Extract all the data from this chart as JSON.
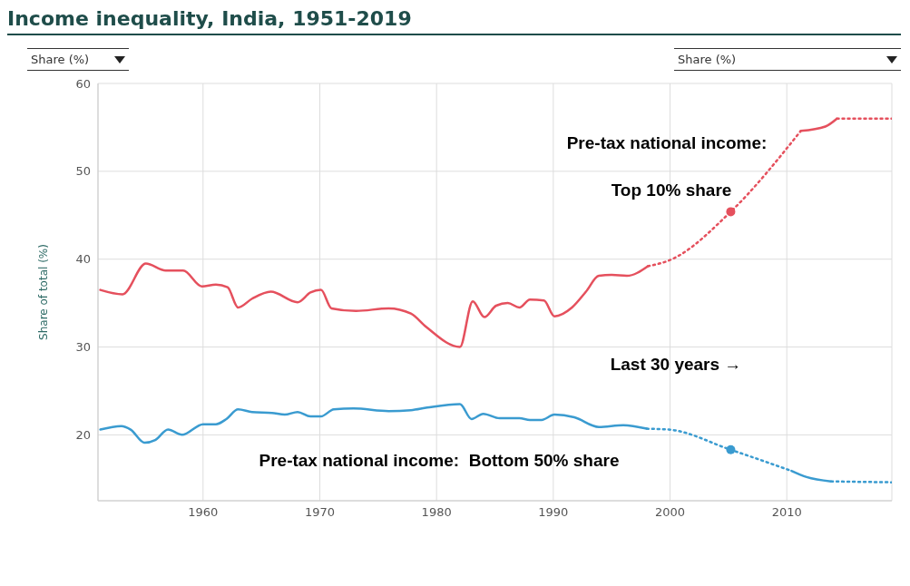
{
  "chart_data": {
    "type": "line",
    "title": "Income inequality, India, 1951-2019",
    "ylabel": "Share of total (%)",
    "annotations": [
      "Share (%)",
      "Share (%)",
      "Pre-tax national income:",
      "Top 10% share",
      "Last 30 years →",
      "Pre-tax national income:  Bottom 50% share"
    ],
    "xlim": [
      1951,
      2019
    ],
    "xticks": [
      1960,
      1970,
      1980,
      1990,
      2000,
      2010
    ],
    "ylim": [
      12.5,
      60
    ],
    "yticks": [
      20,
      30,
      40,
      50,
      60
    ],
    "grid": true,
    "series": [
      {
        "color": "#e5505d",
        "line_style": "solid",
        "x": [
          1951.2,
          1953.1,
          1955.1,
          1956.8,
          1958.3,
          1959.9,
          1961.1,
          1962.1,
          1963.0,
          1964.2,
          1965.8,
          1968.1,
          1969.2,
          1970.1,
          1971.0,
          1973.1,
          1975.9,
          1977.8,
          1979.1,
          1982.0,
          1983.1,
          1984.1,
          1985.1,
          1986.1,
          1987.1,
          1988.0,
          1989.2,
          1990.1,
          1991.6,
          1992.8,
          1993.9,
          1995.0,
          1996.3,
          1998.1
        ],
        "values": [
          36.5,
          36.0,
          39.5,
          38.7,
          38.7,
          36.9,
          37.1,
          36.8,
          34.5,
          35.5,
          36.3,
          35.1,
          36.2,
          36.5,
          34.4,
          34.1,
          34.4,
          33.8,
          32.3,
          30.0,
          35.2,
          33.4,
          34.7,
          35.0,
          34.5,
          35.4,
          35.3,
          33.5,
          34.5,
          36.3,
          38.1,
          38.2,
          38.1,
          39.2
        ]
      },
      {
        "color": "#e5505d",
        "line_style": "dotted",
        "x": [
          1998.1,
          2000,
          2005.2,
          2011.2
        ],
        "values": [
          39.2,
          39.9,
          45.4,
          54.6
        ]
      },
      {
        "color": "#e5505d",
        "line_style": "solid",
        "x": [
          2011.2,
          2013.3,
          2014.3
        ],
        "values": [
          54.6,
          55.1,
          56.0
        ]
      },
      {
        "color": "#e5505d",
        "line_style": "dotted",
        "x": [
          2014.3,
          2019
        ],
        "values": [
          56.0,
          56.0
        ]
      },
      {
        "color": "#e5505d",
        "type": "scatter",
        "marker": "circle",
        "x": [
          2005.2
        ],
        "values": [
          45.4
        ]
      },
      {
        "color": "#3a9bd0",
        "line_style": "solid",
        "x": [
          1951.2,
          1953.0,
          1953.8,
          1955.0,
          1955.9,
          1957.0,
          1958.2,
          1960.0,
          1961.1,
          1962.0,
          1963.0,
          1964.2,
          1965.9,
          1967.0,
          1968.1,
          1969.2,
          1970.1,
          1971.2,
          1972.9,
          1975.9,
          1977.8,
          1979.2,
          1982.0,
          1983.0,
          1984.0,
          1985.4,
          1987.1,
          1988.0,
          1989.0,
          1990.1,
          1991.8,
          1993.9,
          1996.0,
          1998.0
        ],
        "values": [
          20.6,
          21.0,
          20.6,
          19.1,
          19.4,
          20.6,
          20.0,
          21.2,
          21.2,
          21.8,
          22.9,
          22.6,
          22.5,
          22.3,
          22.6,
          22.1,
          22.1,
          22.9,
          23.0,
          22.7,
          22.8,
          23.1,
          23.5,
          21.8,
          22.4,
          21.9,
          21.9,
          21.7,
          21.7,
          22.3,
          22.0,
          20.9,
          21.1,
          20.7
        ]
      },
      {
        "color": "#3a9bd0",
        "line_style": "dotted",
        "x": [
          1998.0,
          1999.9,
          2005.2,
          2010.4
        ],
        "values": [
          20.7,
          20.6,
          18.3,
          15.9
        ]
      },
      {
        "color": "#3a9bd0",
        "line_style": "solid",
        "x": [
          2010.4,
          2011.7,
          2013.8
        ],
        "values": [
          15.9,
          15.2,
          14.7
        ]
      },
      {
        "color": "#3a9bd0",
        "line_style": "dotted",
        "x": [
          2013.8,
          2019
        ],
        "values": [
          14.7,
          14.6
        ]
      },
      {
        "color": "#3a9bd0",
        "type": "scatter",
        "marker": "circle",
        "x": [
          2005.2
        ],
        "values": [
          18.3
        ]
      }
    ]
  }
}
